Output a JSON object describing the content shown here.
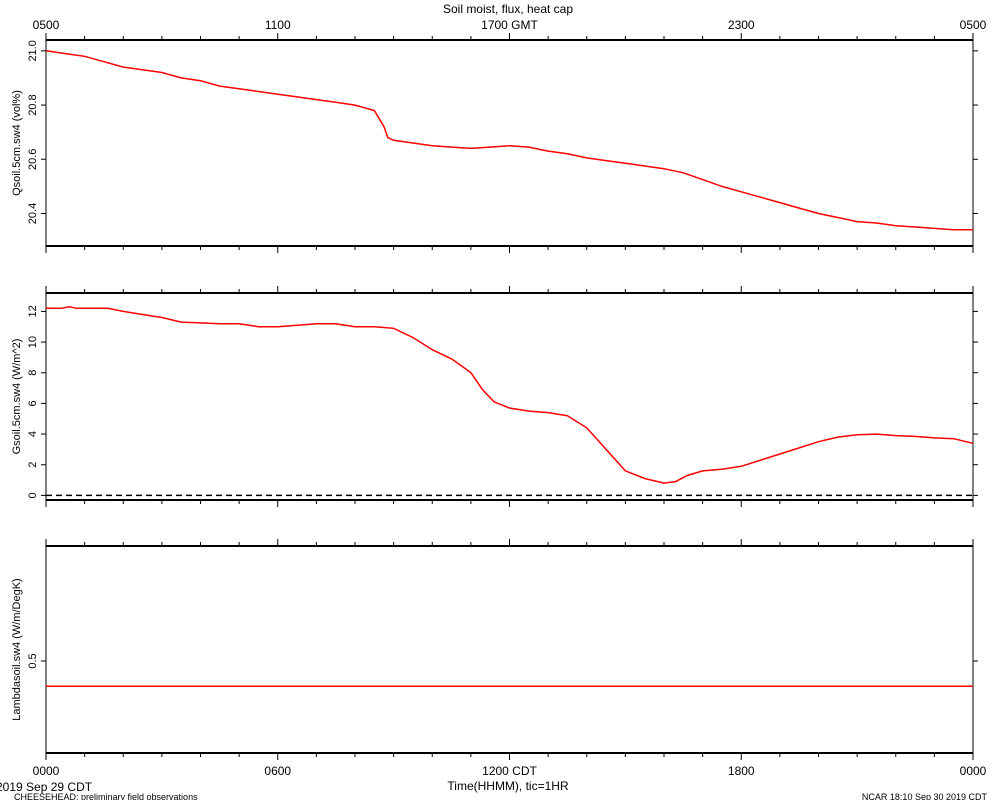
{
  "title": "Soil moist, flux, heat cap",
  "top_axis": {
    "ticks": [
      "0500",
      "1100",
      "1700 GMT",
      "2300",
      "0500"
    ]
  },
  "bottom_axis": {
    "ticks": [
      "0000",
      "0600",
      "1200 CDT",
      "1800",
      "0000"
    ],
    "label": "Time(HHMM), tic=1HR"
  },
  "footer": {
    "left_date": "2019 Sep 29 CDT",
    "left_note": "CHEESEHEAD: preliminary field observations",
    "right_note": "NCAR 18:10 Sep 30 2019 CDT"
  },
  "colors": {
    "series": "#ff0000",
    "axis": "#000000"
  },
  "chart_data": [
    {
      "type": "line",
      "ylabel": "Qsoil.5cm.sw4 (vol%)",
      "xlim": [
        0,
        24
      ],
      "ylim": [
        20.28,
        21.04
      ],
      "yticks": [
        {
          "value": 20.4,
          "label": "20.4"
        },
        {
          "value": 20.6,
          "label": "20.6"
        },
        {
          "value": 20.8,
          "label": "20.8"
        },
        {
          "value": 21.0,
          "label": "21.0"
        }
      ],
      "dashed_zero": false,
      "series": [
        {
          "x": [
            0,
            0.5,
            1,
            1.5,
            2,
            2.5,
            3,
            3.5,
            4,
            4.5,
            5,
            5.5,
            6,
            6.5,
            7,
            7.5,
            8,
            8.5,
            8.75,
            8.85,
            9,
            9.5,
            10,
            10.5,
            11,
            11.5,
            12,
            12.5,
            13,
            13.5,
            14,
            14.5,
            15,
            15.5,
            16,
            16.5,
            17,
            17.5,
            18,
            18.5,
            19,
            19.5,
            20,
            20.5,
            21,
            21.5,
            22,
            22.5,
            23,
            23.5,
            24
          ],
          "y": [
            21.0,
            20.99,
            20.98,
            20.96,
            20.94,
            20.93,
            20.92,
            20.9,
            20.89,
            20.87,
            20.86,
            20.85,
            20.84,
            20.83,
            20.82,
            20.81,
            20.8,
            20.78,
            20.72,
            20.68,
            20.67,
            20.66,
            20.65,
            20.645,
            20.64,
            20.645,
            20.65,
            20.645,
            20.63,
            20.62,
            20.605,
            20.595,
            20.585,
            20.575,
            20.565,
            20.55,
            20.525,
            20.5,
            20.48,
            20.46,
            20.44,
            20.42,
            20.4,
            20.385,
            20.37,
            20.365,
            20.355,
            20.35,
            20.345,
            20.34,
            20.34
          ]
        }
      ]
    },
    {
      "type": "line",
      "ylabel": "Gsoil.5cm.sw4 (W/m^2)",
      "xlim": [
        0,
        24
      ],
      "ylim": [
        -0.3,
        13.2
      ],
      "yticks": [
        {
          "value": 0,
          "label": "0"
        },
        {
          "value": 2,
          "label": "2"
        },
        {
          "value": 4,
          "label": "4"
        },
        {
          "value": 6,
          "label": "6"
        },
        {
          "value": 8,
          "label": "8"
        },
        {
          "value": 10,
          "label": "10"
        },
        {
          "value": 12,
          "label": "12"
        }
      ],
      "dashed_zero": true,
      "series": [
        {
          "x": [
            0,
            0.4,
            0.6,
            0.8,
            1.0,
            1.6,
            2.0,
            2.5,
            3.0,
            3.5,
            4.0,
            4.5,
            5.0,
            5.5,
            6.0,
            6.5,
            7.0,
            7.5,
            8.0,
            8.5,
            9.0,
            9.5,
            10.0,
            10.5,
            11.0,
            11.3,
            11.6,
            12.0,
            12.5,
            13.0,
            13.5,
            14.0,
            14.5,
            15.0,
            15.5,
            16.0,
            16.3,
            16.6,
            17.0,
            17.5,
            18.0,
            18.5,
            19.0,
            19.5,
            20.0,
            20.5,
            21.0,
            21.5,
            22.0,
            22.5,
            23.0,
            23.5,
            24.0
          ],
          "y": [
            12.2,
            12.2,
            12.3,
            12.2,
            12.2,
            12.2,
            12.0,
            11.8,
            11.6,
            11.3,
            11.25,
            11.2,
            11.2,
            11.0,
            11.0,
            11.1,
            11.2,
            11.2,
            11.0,
            11.0,
            10.9,
            10.3,
            9.5,
            8.9,
            8.0,
            6.9,
            6.1,
            5.7,
            5.5,
            5.4,
            5.2,
            4.4,
            3.0,
            1.6,
            1.1,
            0.8,
            0.9,
            1.3,
            1.6,
            1.7,
            1.9,
            2.3,
            2.7,
            3.1,
            3.5,
            3.8,
            3.95,
            4.0,
            3.9,
            3.85,
            3.75,
            3.7,
            3.4
          ]
        }
      ]
    },
    {
      "type": "line",
      "ylabel": "Lambdasoil.sw4 (W/m/DegK)",
      "xlim": [
        0,
        24
      ],
      "ylim": [
        0.1,
        1.0
      ],
      "yticks": [
        {
          "value": 0.5,
          "label": "0.5"
        }
      ],
      "dashed_zero": false,
      "series": [
        {
          "x": [
            0,
            24
          ],
          "y": [
            0.39,
            0.39
          ]
        }
      ]
    }
  ]
}
